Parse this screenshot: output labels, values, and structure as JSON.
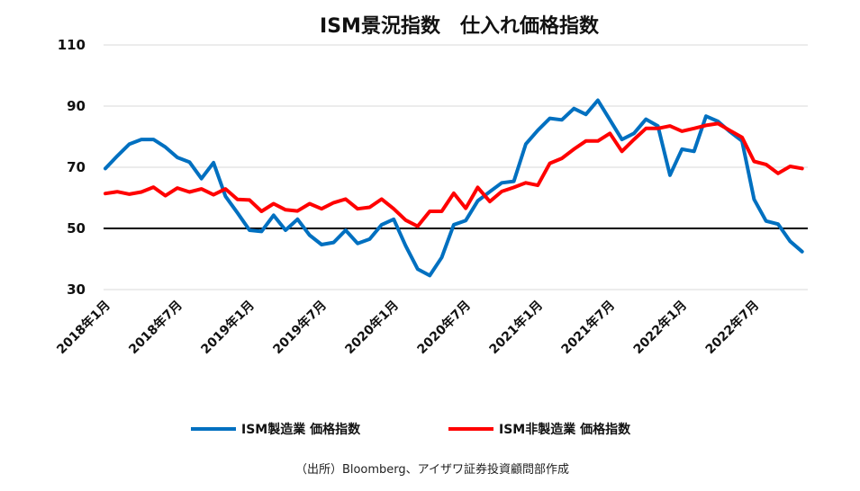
{
  "chart_data": {
    "type": "line",
    "title": "ISM景況指数　仕入れ価格指数",
    "xlabel": "",
    "ylabel": "",
    "ylim": [
      30,
      110
    ],
    "yticks": [
      30,
      50,
      70,
      90,
      110
    ],
    "reference_line": 50,
    "grid": true,
    "legend_position": "bottom",
    "x_start": "2018-01",
    "x_tick_labels": [
      "2018年1月",
      "2018年7月",
      "2019年1月",
      "2019年7月",
      "2020年1月",
      "2020年7月",
      "2021年1月",
      "2021年7月",
      "2022年1月",
      "2022年7月"
    ],
    "series": [
      {
        "name": "ISM製造業 価格指数",
        "color": "#0070C0",
        "values": [
          69.6,
          73.7,
          77.6,
          79.1,
          79.1,
          76.6,
          73.2,
          71.7,
          66.3,
          71.5,
          60.5,
          55.1,
          49.4,
          49.0,
          54.3,
          49.4,
          53.0,
          47.8,
          44.7,
          45.4,
          49.4,
          45.1,
          46.5,
          51.2,
          53.0,
          44.3,
          36.7,
          34.6,
          40.5,
          51.2,
          52.6,
          59.0,
          62.0,
          64.9,
          65.4,
          77.6,
          82.1,
          86.0,
          85.5,
          89.2,
          87.3,
          91.9,
          85.5,
          79.1,
          81.1,
          85.7,
          83.5,
          67.4,
          75.9,
          75.2,
          86.7,
          85.0,
          81.6,
          78.6,
          59.5,
          52.4,
          51.4,
          45.8,
          42.4
        ]
      },
      {
        "name": "ISM非製造業 価格指数",
        "color": "#FF0000",
        "values": [
          61.4,
          62.0,
          61.2,
          61.9,
          63.5,
          60.7,
          63.2,
          61.9,
          62.9,
          61.0,
          62.9,
          59.5,
          59.3,
          55.6,
          58.1,
          56.1,
          55.7,
          58.1,
          56.4,
          58.4,
          59.6,
          56.4,
          56.9,
          59.6,
          56.4,
          52.7,
          50.7,
          55.6,
          55.6,
          61.5,
          56.6,
          63.4,
          58.8,
          62.1,
          63.4,
          64.9,
          64.1,
          71.3,
          72.9,
          75.9,
          78.6,
          78.6,
          81.1,
          75.2,
          79.1,
          82.7,
          82.7,
          83.5,
          81.8,
          82.7,
          83.7,
          84.3,
          82.0,
          79.8,
          71.9,
          70.9,
          68.0,
          70.3,
          69.6
        ]
      }
    ]
  },
  "source": "（出所）Bloomberg、アイザワ証券投資顧問部作成"
}
